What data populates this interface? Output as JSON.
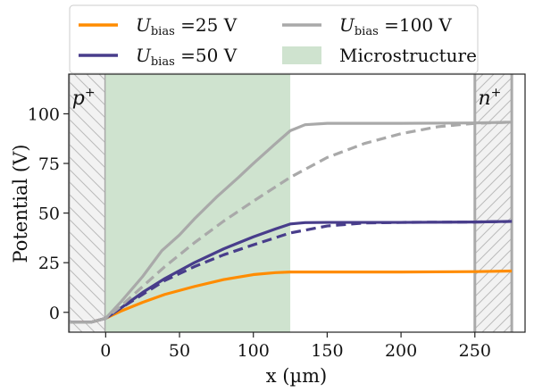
{
  "chart_data": {
    "type": "line",
    "xlabel": "x (µm)",
    "ylabel": "Potential (V)",
    "xlim": [
      -25,
      284
    ],
    "ylim": [
      -10,
      120
    ],
    "x_ticks": [
      0,
      50,
      100,
      150,
      200,
      250
    ],
    "y_ticks": [
      0,
      25,
      50,
      75,
      100
    ],
    "legend_placement": "top, outside plot",
    "regions": [
      {
        "name": "p⁺ doped region",
        "label": "p",
        "sup": "+",
        "x_range": [
          -25,
          0
        ],
        "hatch": "\\\\",
        "fill": "#f2f2f2"
      },
      {
        "name": "Microstructure",
        "label": "Microstructure",
        "x_range": [
          0,
          125
        ],
        "fill": "#cfe3cf"
      },
      {
        "name": "n⁺ doped region",
        "label": "n",
        "sup": "+",
        "x_range": [
          250,
          275
        ],
        "hatch": "//",
        "fill": "#f2f2f2"
      }
    ],
    "legend": [
      {
        "label_main": "U",
        "label_sub": "bias",
        "label_rest": " =25 V",
        "color": "#ff8c00",
        "kind": "line"
      },
      {
        "label_main": "U",
        "label_sub": "bias",
        "label_rest": " =50 V",
        "color": "#483d8b",
        "kind": "line"
      },
      {
        "label_main": "U",
        "label_sub": "bias",
        "label_rest": " =100 V",
        "color": "#a9a9a9",
        "kind": "line"
      },
      {
        "label_main": "",
        "label_sub": "",
        "label_rest": "Microstructure",
        "color": "#cfe3cf",
        "kind": "patch"
      }
    ],
    "series": [
      {
        "name": "Ubias = 25 V",
        "color": "#ff8c00",
        "style": "solid",
        "x": [
          -25,
          -10,
          0,
          10,
          25,
          40,
          60,
          80,
          100,
          115,
          125,
          150,
          200,
          250,
          275
        ],
        "y": [
          -5,
          -5,
          -3,
          0.5,
          5,
          9,
          13,
          16.5,
          19,
          20,
          20.3,
          20.3,
          20.3,
          20.5,
          20.8
        ]
      },
      {
        "name": "Ubias = 50 V",
        "color": "#483d8b",
        "style": "solid",
        "x": [
          -25,
          -10,
          0,
          10,
          25,
          40,
          60,
          80,
          100,
          115,
          125,
          135,
          150,
          200,
          250,
          275
        ],
        "y": [
          -5,
          -5,
          -3,
          2,
          10,
          17,
          25,
          32,
          38,
          42,
          44.5,
          45.2,
          45.3,
          45.3,
          45.5,
          45.8
        ]
      },
      {
        "name": "Ubias = 50 V (dashed)",
        "color": "#483d8b",
        "style": "dashed",
        "x": [
          -25,
          -10,
          0,
          10,
          25,
          40,
          60,
          80,
          100,
          125,
          150,
          175,
          200,
          250,
          275
        ],
        "y": [
          -5,
          -5,
          -3,
          2,
          9,
          16,
          23,
          29,
          34,
          40,
          43.5,
          45,
          45.3,
          45.5,
          45.8
        ]
      },
      {
        "name": "Ubias = 100 V",
        "color": "#a9a9a9",
        "style": "solid",
        "x": [
          -25,
          -10,
          0,
          10,
          25,
          38,
          50,
          60,
          75,
          90,
          100,
          115,
          125,
          135,
          150,
          200,
          250,
          275
        ],
        "y": [
          -5,
          -5,
          -3,
          5,
          18,
          31,
          39,
          47,
          58,
          68,
          75,
          85,
          91.5,
          94.5,
          95.2,
          95.2,
          95.4,
          95.8
        ]
      },
      {
        "name": "Ubias = 100 V (dashed)",
        "color": "#a9a9a9",
        "style": "dashed",
        "x": [
          -25,
          -10,
          0,
          10,
          25,
          40,
          60,
          80,
          100,
          125,
          150,
          175,
          200,
          225,
          250,
          275
        ],
        "y": [
          -5,
          -5,
          -3,
          3,
          13,
          23,
          35,
          46,
          56,
          68,
          78,
          85,
          90,
          93.5,
          95.2,
          95.8
        ]
      }
    ]
  }
}
